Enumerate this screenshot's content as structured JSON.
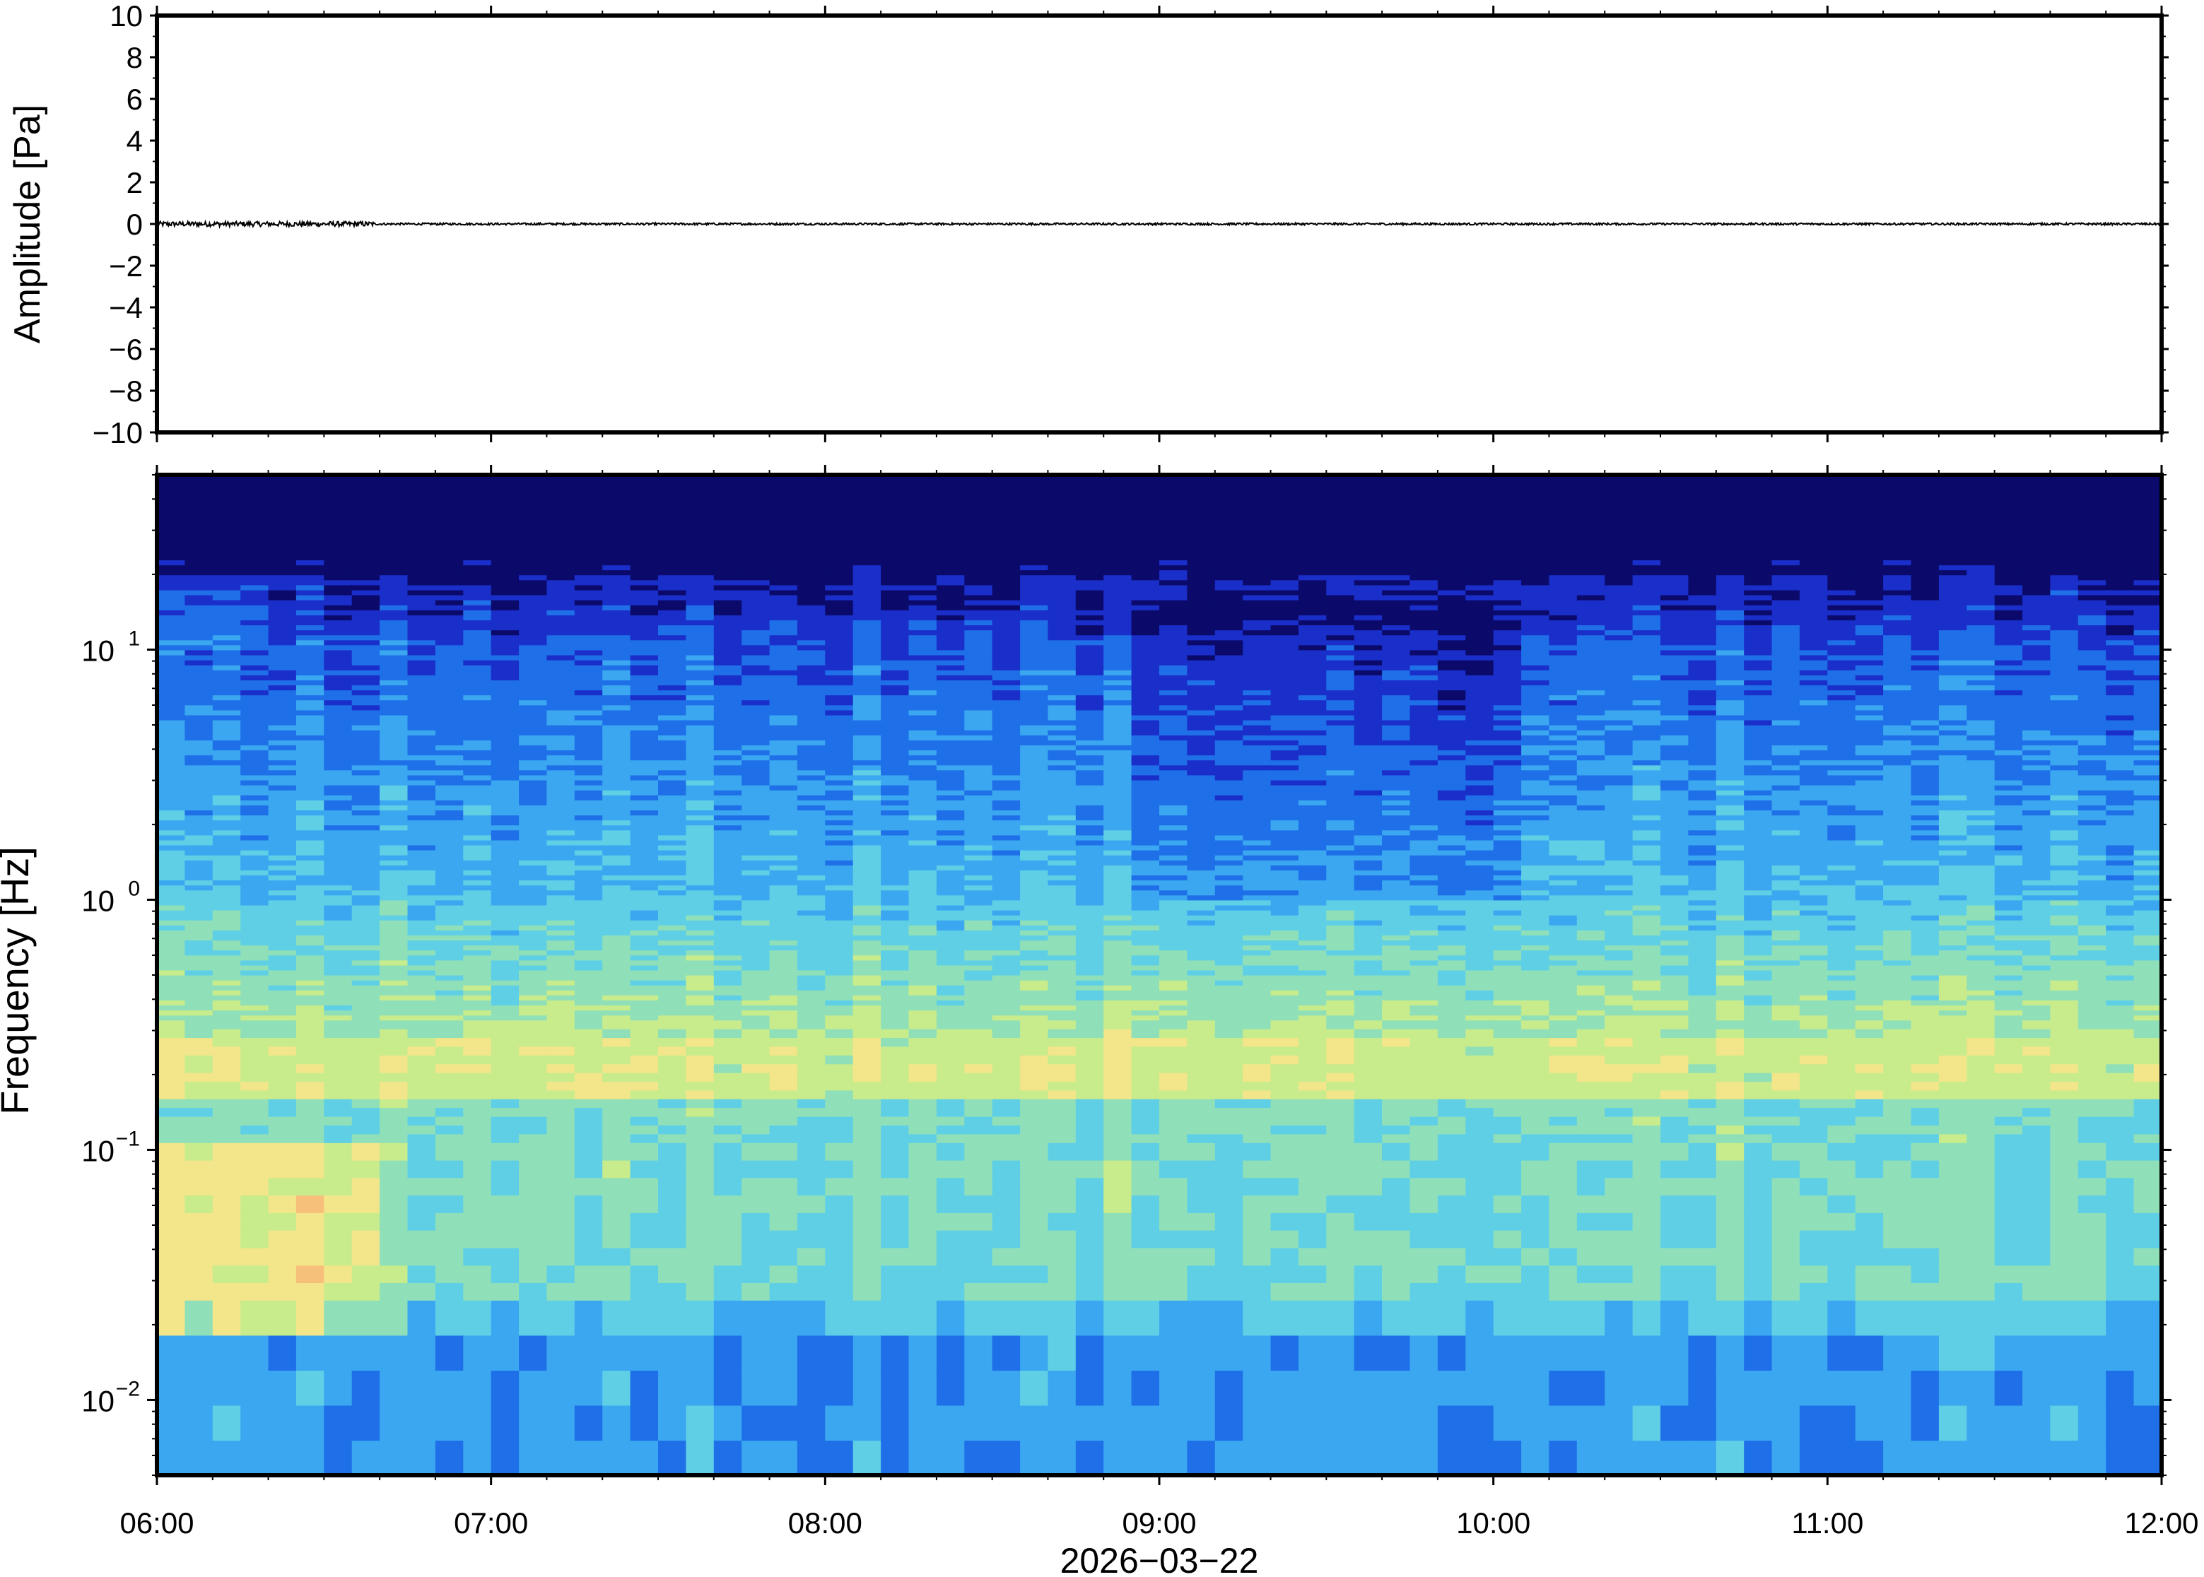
{
  "chart_data": [
    {
      "type": "line",
      "title": "",
      "ylabel": "Amplitude [Pa]",
      "xlabel": "",
      "ylim": [
        -10,
        10
      ],
      "yticks": [
        "10",
        "8",
        "6",
        "4",
        "2",
        "0",
        "−2",
        "−4",
        "−6",
        "−8",
        "−10"
      ],
      "ytick_values": [
        10,
        8,
        6,
        4,
        2,
        0,
        -2,
        -4,
        -6,
        -8,
        -10
      ],
      "xlim_hours": [
        6,
        12
      ],
      "series": [
        {
          "values_summary": "near-zero trace, peak |amplitude| about 0.1 Pa (slightly larger 06:00–06:40)",
          "color": "#000000"
        }
      ],
      "grid": false
    },
    {
      "type": "heatmap",
      "title": "",
      "ylabel": "Frequency [Hz]",
      "xlabel": "2026−03−22",
      "y_scale": "log",
      "ylim": [
        0.005,
        50
      ],
      "yticks": [
        {
          "base": "10",
          "exp": "1",
          "value": 10
        },
        {
          "base": "10",
          "exp": "0",
          "value": 1
        },
        {
          "base": "10",
          "exp": "−1",
          "value": 0.1
        },
        {
          "base": "10",
          "exp": "−2",
          "value": 0.01
        }
      ],
      "xticks": [
        "06:00",
        "07:00",
        "08:00",
        "09:00",
        "10:00",
        "11:00",
        "12:00"
      ],
      "xtick_hours": [
        6,
        7,
        8,
        9,
        10,
        11,
        12
      ],
      "colormap": [
        "#0b0a6b",
        "#1a2ec9",
        "#1f6fe8",
        "#3aa7f0",
        "#5fcfe6",
        "#8fe0b8",
        "#c8ec8c",
        "#f2e58a",
        "#f7c07a",
        "#f49a6a"
      ],
      "description_of_field": "dark navy above ~15 Hz, blue 1–10 Hz with darker band 09:00–10:00, yellow-orange band near 0.2 Hz, warm patch 0.03–0.1 Hz at 06:00–06:40, cyan-blue columns below 0.02 Hz",
      "grid": false
    }
  ]
}
